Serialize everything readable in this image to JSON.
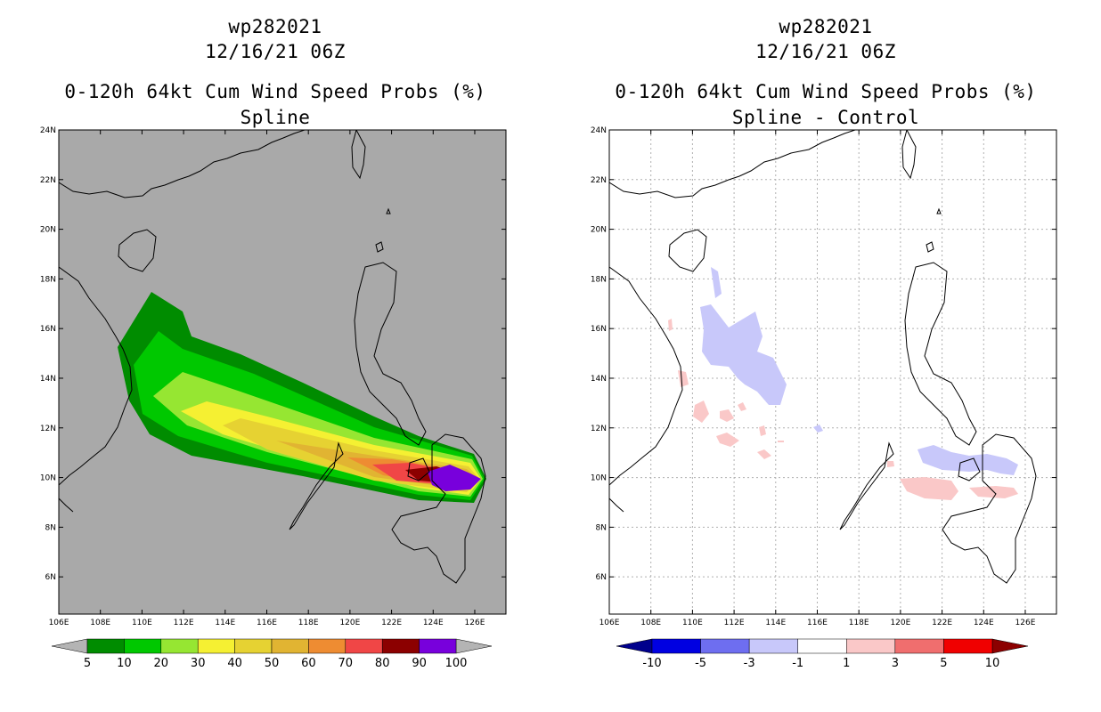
{
  "left_panel": {
    "title_line1": "wp282021",
    "title_line2": "12/16/21 06Z",
    "title_line3": "0-120h 64kt Cum Wind Speed Probs (%)",
    "title_line4": "Spline",
    "background_color": "#a9a9a9",
    "colorbar": {
      "labels": [
        "5",
        "10",
        "20",
        "30",
        "40",
        "50",
        "60",
        "70",
        "80",
        "90",
        "100"
      ],
      "colors": [
        "#008c00",
        "#00c800",
        "#96e632",
        "#f5f032",
        "#e6d232",
        "#e1b432",
        "#ee8c32",
        "#f04646",
        "#8c0000",
        "#7800dc"
      ],
      "under_color": "#b4b4b4",
      "over_color": "#b4b4b4"
    }
  },
  "right_panel": {
    "title_line1": "wp282021",
    "title_line2": "12/16/21 06Z",
    "title_line3": "0-120h 64kt Cum Wind Speed Probs (%)",
    "title_line4": "Spline - Control",
    "background_color": "#ffffff",
    "colorbar": {
      "labels": [
        "-10",
        "-5",
        "-3",
        "-1",
        "1",
        "3",
        "5",
        "10"
      ],
      "colors": [
        "#0000e1",
        "#6e6ef0",
        "#c8c8fa",
        "#ffffff",
        "#fac8c8",
        "#f06e6e",
        "#f00000"
      ],
      "under_color": "#00008c",
      "over_color": "#8c0000"
    }
  },
  "axes": {
    "lon_ticks": [
      "106E",
      "108E",
      "110E",
      "112E",
      "114E",
      "116E",
      "118E",
      "120E",
      "122E",
      "124E",
      "126E"
    ],
    "lat_ticks": [
      "24N",
      "22N",
      "20N",
      "18N",
      "16N",
      "14N",
      "12N",
      "10N",
      "8N",
      "6N"
    ],
    "lon_range": [
      106,
      127.5
    ],
    "lat_range": [
      4.5,
      24
    ]
  }
}
